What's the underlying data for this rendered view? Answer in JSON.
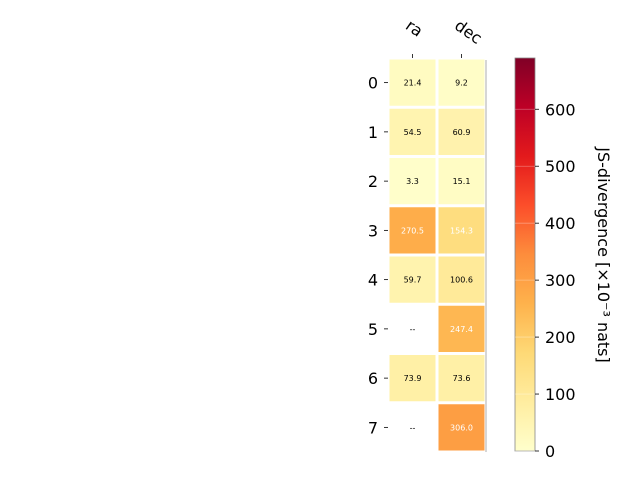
{
  "chart_data": {
    "type": "heatmap",
    "columns": [
      "ra",
      "dec"
    ],
    "rows": [
      "0",
      "1",
      "2",
      "3",
      "4",
      "5",
      "6",
      "7"
    ],
    "values": [
      [
        21.4,
        9.2
      ],
      [
        54.5,
        60.9
      ],
      [
        3.3,
        15.1
      ],
      [
        270.5,
        154.3
      ],
      [
        59.7,
        100.6
      ],
      [
        null,
        247.4
      ],
      [
        73.9,
        73.6
      ],
      [
        null,
        306.0
      ]
    ],
    "cell_labels": [
      [
        "21.4",
        "9.2"
      ],
      [
        "54.5",
        "60.9"
      ],
      [
        "3.3",
        "15.1"
      ],
      [
        "270.5",
        "154.3"
      ],
      [
        "59.7",
        "100.6"
      ],
      [
        "--",
        "247.4"
      ],
      [
        "73.9",
        "73.6"
      ],
      [
        "--",
        "306.0"
      ]
    ],
    "colorbar": {
      "label": "JS-divergence [×10⁻³ nats]",
      "range": [
        0,
        690
      ],
      "ticks": [
        "0",
        "100",
        "200",
        "300",
        "400",
        "500",
        "600"
      ],
      "colormap": "YlOrRd"
    },
    "grid": false,
    "legend": "colorbar-right"
  }
}
